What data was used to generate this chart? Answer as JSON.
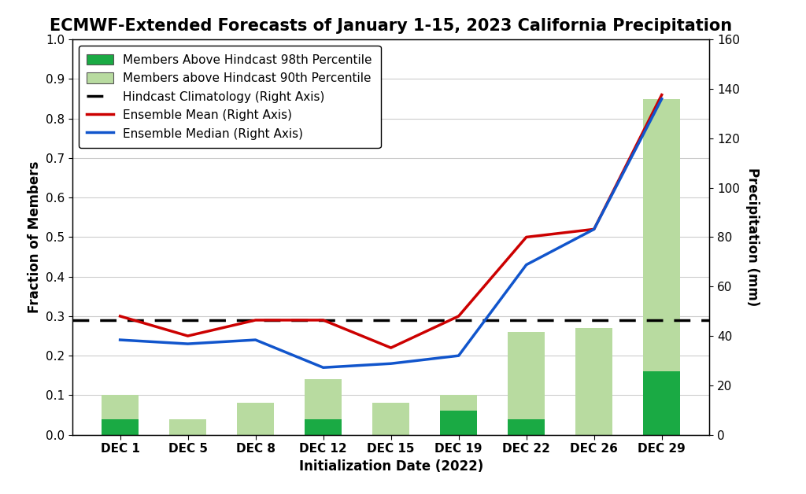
{
  "title": "ECMWF-Extended Forecasts of January 1-15, 2023 California Precipitation",
  "xlabel": "Initialization Date (2022)",
  "ylabel_left": "Fraction of Members",
  "ylabel_right": "Precipitation (mm)",
  "categories": [
    "DEC 1",
    "DEC 5",
    "DEC 8",
    "DEC 12",
    "DEC 15",
    "DEC 19",
    "DEC 22",
    "DEC 26",
    "DEC 29"
  ],
  "bar_90th": [
    0.1,
    0.04,
    0.08,
    0.14,
    0.08,
    0.1,
    0.26,
    0.27,
    0.85
  ],
  "bar_98th": [
    0.04,
    0.0,
    0.0,
    0.04,
    0.0,
    0.06,
    0.04,
    0.0,
    0.16
  ],
  "ensemble_mean": [
    0.3,
    0.25,
    0.29,
    0.29,
    0.22,
    0.3,
    0.5,
    0.52,
    0.86
  ],
  "ensemble_median": [
    0.24,
    0.23,
    0.24,
    0.17,
    0.18,
    0.2,
    0.43,
    0.52,
    0.85
  ],
  "hindcast_climatology": 0.29,
  "ylim_left": [
    0.0,
    1.0
  ],
  "ylim_right": [
    0,
    160
  ],
  "color_98th": "#1aaa44",
  "color_90th": "#b8dba0",
  "color_mean": "#cc0000",
  "color_median": "#1155cc",
  "color_climatology": "#000000",
  "bar_width": 0.55,
  "title_fontsize": 15,
  "axis_fontsize": 12,
  "tick_fontsize": 11,
  "legend_fontsize": 11,
  "background_color": "#ffffff",
  "grid_color": "#cccccc"
}
